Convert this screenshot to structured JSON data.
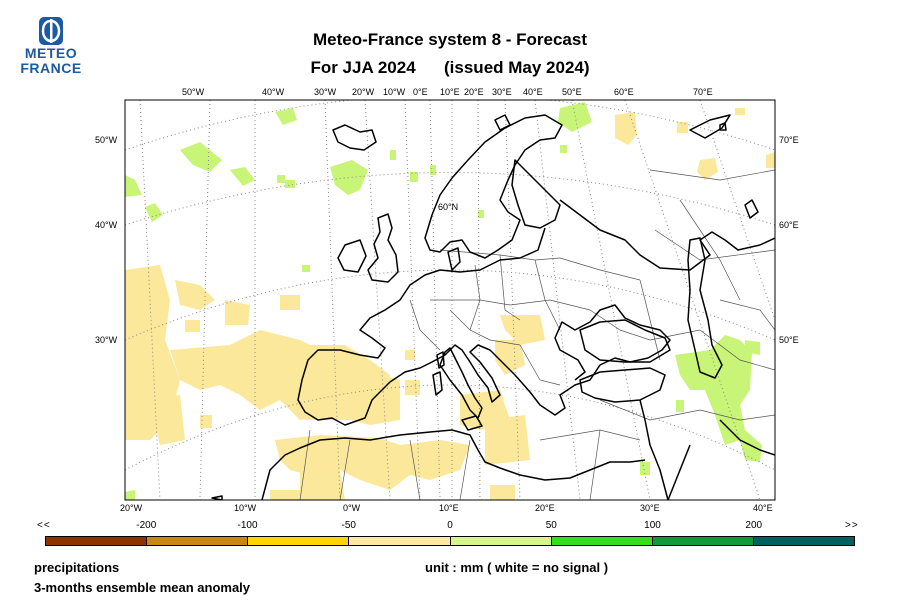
{
  "logo": {
    "line1": "METEO",
    "line2": "FRANCE"
  },
  "title": {
    "line1": "Meteo-France system 8  -  Forecast",
    "season": "For JJA 2024",
    "issued": "(issued May 2024)"
  },
  "map": {
    "top_lon_labels": [
      "50°W",
      "40°W",
      "30°W",
      "20°W",
      "10°W",
      "0°E",
      "10°E",
      "20°E",
      "30°E",
      "40°E",
      "50°E",
      "60°E",
      "70°E"
    ],
    "bottom_lon_labels": [
      "20°W",
      "10°W",
      "0°W",
      "10°E",
      "20°E",
      "30°E",
      "40°E"
    ],
    "left_lat_labels": [
      "50°W",
      "40°W",
      "30°W"
    ],
    "right_lat_labels": [
      "70°E",
      "60°E",
      "50°E"
    ],
    "inner_label": "60°N",
    "colors": {
      "coastline": "#000000",
      "border": "#555555",
      "gridline": "#888888",
      "dry_anomaly": "#fbe89a",
      "wet_anomaly": "#c8f578",
      "wet_anomaly_strong": "#9ef04e"
    }
  },
  "colorbar": {
    "left_end": "<<",
    "right_end": ">>",
    "labels": [
      "-200",
      "-100",
      "-50",
      "0",
      "50",
      "100",
      "200"
    ],
    "colors": [
      "#8b3505",
      "#c78a10",
      "#ffd500",
      "#fde9a4",
      "#d6f58e",
      "#33e01d",
      "#0f9a3a",
      "#005f5f"
    ]
  },
  "footer": {
    "variable": "precipitations",
    "description": "3-months ensemble mean anomaly",
    "unit": "unit : mm  ( white = no signal )"
  }
}
